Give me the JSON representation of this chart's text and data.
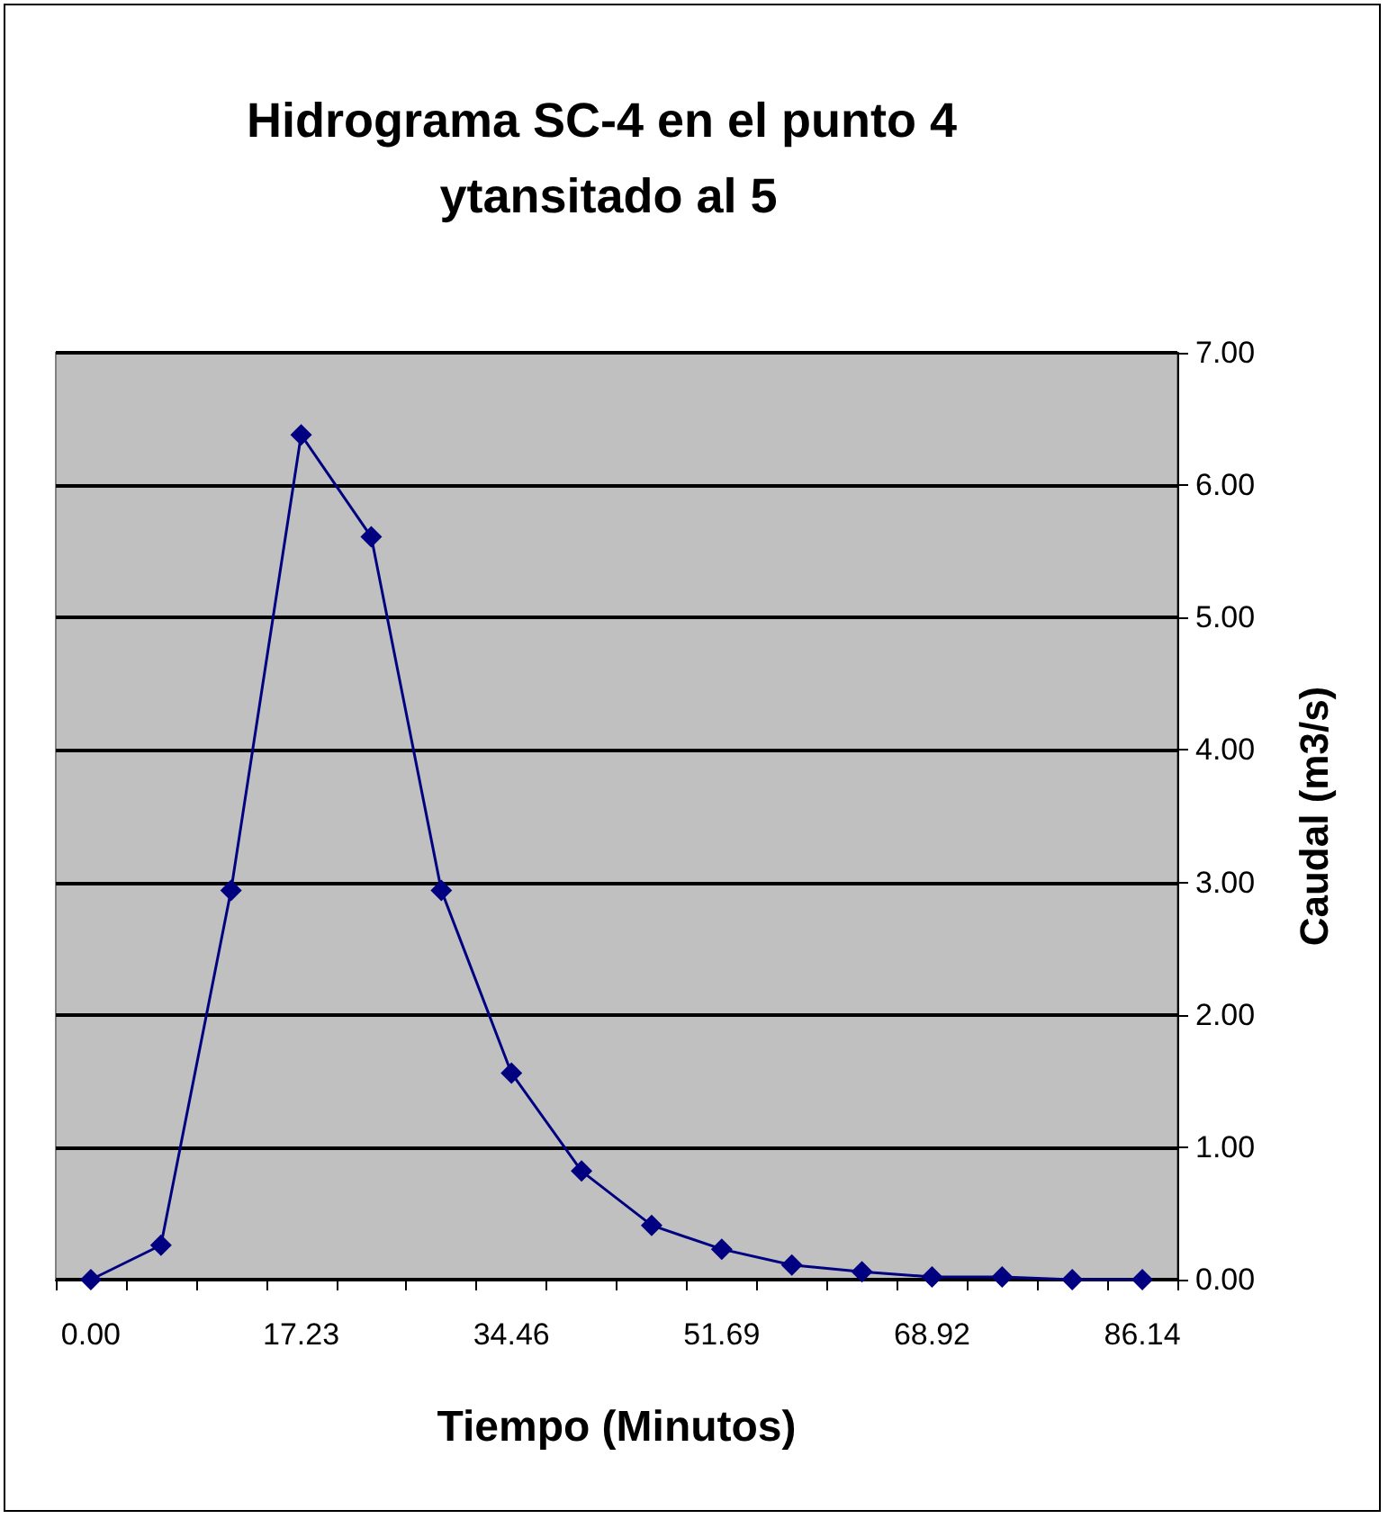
{
  "chart_data": {
    "type": "line",
    "title": "Hidrograma SC-4 en el punto 4 ytansitado al 5",
    "xlabel": "Tiempo (Minutos)",
    "ylabel": "Caudal (m3/s)",
    "categories": [
      "0.00",
      null,
      null,
      "17.23",
      null,
      null,
      "34.46",
      null,
      null,
      "51.69",
      null,
      null,
      "68.92",
      null,
      null,
      "86.14"
    ],
    "series": [
      {
        "color": "#000080",
        "values": [
          0,
          0.26,
          2.94,
          6.38,
          5.61,
          2.94,
          1.56,
          0.82,
          0.41,
          0.23,
          0.11,
          0.06,
          0.02,
          0.02,
          0,
          0
        ]
      }
    ],
    "ylim": [
      0,
      7
    ],
    "yticks": [
      {
        "value": 0,
        "label": "0.00"
      },
      {
        "value": 1,
        "label": "1.00"
      },
      {
        "value": 2,
        "label": "2.00"
      },
      {
        "value": 3,
        "label": "3.00"
      },
      {
        "value": 4,
        "label": "4.00"
      },
      {
        "value": 5,
        "label": "5.00"
      },
      {
        "value": 6,
        "label": "6.00"
      },
      {
        "value": 7,
        "label": "7.00"
      }
    ],
    "grid": "y",
    "marker": "diamond",
    "line_style": "solid"
  }
}
